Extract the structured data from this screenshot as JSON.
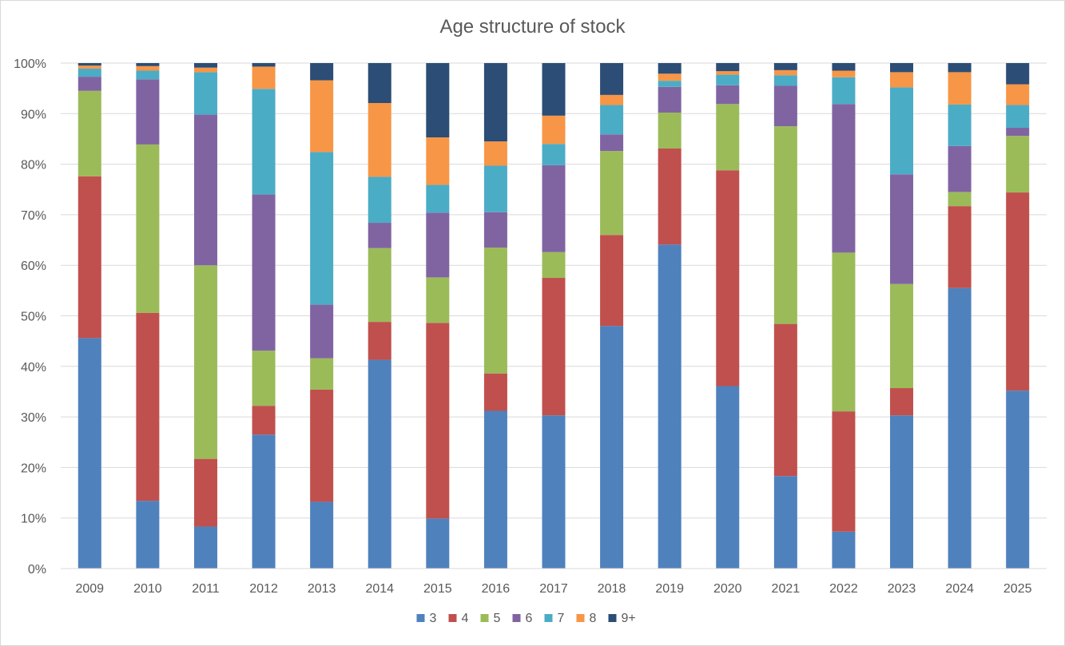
{
  "chart_data": {
    "type": "bar",
    "stacked": "percent",
    "title": "Age structure of stock",
    "xlabel": "",
    "ylabel": "",
    "categories": [
      "2009",
      "2010",
      "2011",
      "2012",
      "2013",
      "2014",
      "2015",
      "2016",
      "2017",
      "2018",
      "2019",
      "2020",
      "2021",
      "2022",
      "2023",
      "2024",
      "2025"
    ],
    "ylim": [
      0,
      100
    ],
    "yticks": [
      "0%",
      "10%",
      "20%",
      "30%",
      "40%",
      "50%",
      "60%",
      "70%",
      "80%",
      "90%",
      "100%"
    ],
    "grid": true,
    "legend_position": "bottom",
    "series": [
      {
        "name": "3",
        "color": "#4f81bd",
        "values": [
          45.6,
          13.4,
          8.3,
          26.5,
          13.2,
          41.3,
          9.9,
          31.2,
          30.3,
          48.0,
          64.1,
          36.1,
          18.3,
          7.3,
          30.3,
          55.5,
          35.2
        ]
      },
      {
        "name": "4",
        "color": "#c0504d",
        "values": [
          32.0,
          37.2,
          13.4,
          5.7,
          22.2,
          7.5,
          38.7,
          7.4,
          27.2,
          18.0,
          19.0,
          42.7,
          30.1,
          23.8,
          5.4,
          16.2,
          39.2
        ]
      },
      {
        "name": "5",
        "color": "#9bbb59",
        "values": [
          16.9,
          33.3,
          38.3,
          10.9,
          6.2,
          14.6,
          9.0,
          24.9,
          5.1,
          16.6,
          7.1,
          13.1,
          39.1,
          31.4,
          20.6,
          2.8,
          11.2
        ]
      },
      {
        "name": "6",
        "color": "#8064a2",
        "values": [
          2.8,
          12.9,
          29.8,
          30.9,
          10.6,
          5.0,
          12.8,
          7.0,
          17.2,
          3.3,
          5.1,
          3.7,
          8.0,
          29.4,
          21.7,
          9.1,
          1.6
        ]
      },
      {
        "name": "7",
        "color": "#4bacc6",
        "values": [
          1.6,
          1.7,
          8.4,
          20.9,
          30.2,
          9.1,
          5.5,
          9.2,
          4.2,
          5.8,
          1.2,
          2.1,
          2.1,
          5.3,
          17.2,
          8.2,
          4.5
        ]
      },
      {
        "name": "8",
        "color": "#f79646",
        "values": [
          0.6,
          0.9,
          0.9,
          4.4,
          14.2,
          14.6,
          9.4,
          4.8,
          5.6,
          2.0,
          1.4,
          0.7,
          1.0,
          1.3,
          3.0,
          6.4,
          4.1
        ]
      },
      {
        "name": "9+",
        "color": "#2c4d75",
        "values": [
          0.5,
          0.6,
          0.9,
          0.7,
          3.4,
          7.9,
          14.7,
          15.5,
          10.4,
          6.3,
          2.1,
          1.6,
          1.4,
          1.5,
          1.8,
          1.8,
          4.2
        ]
      }
    ]
  }
}
